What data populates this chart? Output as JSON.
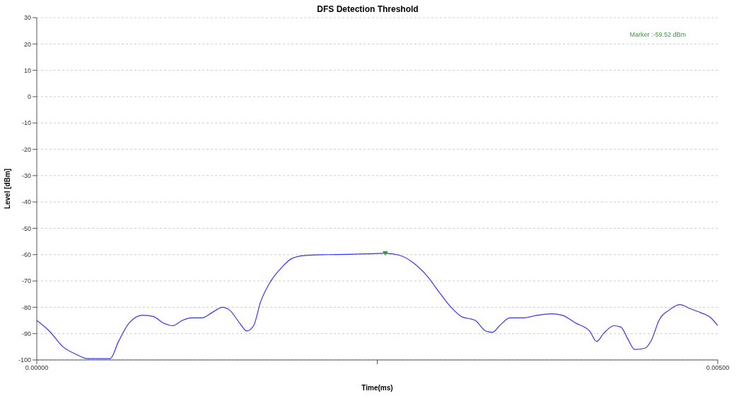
{
  "chart_data": {
    "type": "line",
    "title": "DFS Detection Threshold",
    "xlabel": "Time(ms)",
    "ylabel": "Level [dBm]",
    "x": [
      0,
      9.2e-05,
      0.000193,
      0.000295,
      0.000371,
      0.000448,
      0.000539,
      0.0006,
      0.000677,
      0.000778,
      0.000855,
      0.000931,
      0.000997,
      0.001068,
      0.001134,
      0.001211,
      0.001287,
      0.001363,
      0.001414,
      0.00149,
      0.001541,
      0.001592,
      0.001643,
      0.001719,
      0.001796,
      0.001872,
      0.001974,
      0.002126,
      0.002279,
      0.002431,
      0.002559,
      0.00266,
      0.002762,
      0.002864,
      0.002965,
      0.003042,
      0.003118,
      0.00322,
      0.003296,
      0.003347,
      0.003398,
      0.003474,
      0.003576,
      0.003678,
      0.003779,
      0.003856,
      0.003957,
      0.004059,
      0.00411,
      0.004161,
      0.004237,
      0.004288,
      0.004339,
      0.00439,
      0.004466,
      0.004517,
      0.004568,
      0.004644,
      0.00472,
      0.004797,
      0.004873,
      0.004949,
      0.005
    ],
    "series": [
      {
        "color": "#3333ff",
        "values": [
          -85,
          -89,
          -95,
          -98,
          -99.5,
          -99.5,
          -99.5,
          -93,
          -86,
          -83,
          -83.5,
          -86,
          -87,
          -85,
          -84,
          -84,
          -82,
          -80,
          -81,
          -86,
          -89,
          -87,
          -78,
          -70,
          -65,
          -61.5,
          -60.3,
          -60,
          -59.9,
          -59.7,
          -59.5,
          -60.2,
          -63,
          -68,
          -75,
          -80,
          -83.5,
          -85,
          -89,
          -89.5,
          -87,
          -84,
          -84,
          -83,
          -82.5,
          -83,
          -86,
          -89,
          -93,
          -90,
          -87,
          -87.5,
          -92,
          -96,
          -95.5,
          -92,
          -85,
          -81,
          -79,
          -80.5,
          -82,
          -84,
          -87
        ]
      },
      {
        "type": "scatter",
        "x": [
          0.002559
        ],
        "values": [
          -59.5
        ],
        "color": "#3a9a3a",
        "marker": "triangle"
      }
    ],
    "xlim": [
      0,
      0.005
    ],
    "xticks": [
      {
        "value": 0,
        "label": "0.00000"
      },
      {
        "value": 0.0025,
        "label": null
      },
      {
        "value": 0.005,
        "label": "0.00500"
      }
    ],
    "ylim": [
      -100,
      30
    ],
    "yticks": [
      -100,
      -90,
      -80,
      -70,
      -60,
      -50,
      -40,
      -30,
      -20,
      -10,
      0,
      10,
      20,
      30
    ],
    "annotations": [
      "Marker :-59.52 dBm"
    ],
    "grid": "y",
    "legend": false,
    "marker": "none",
    "line_style": "solid"
  }
}
